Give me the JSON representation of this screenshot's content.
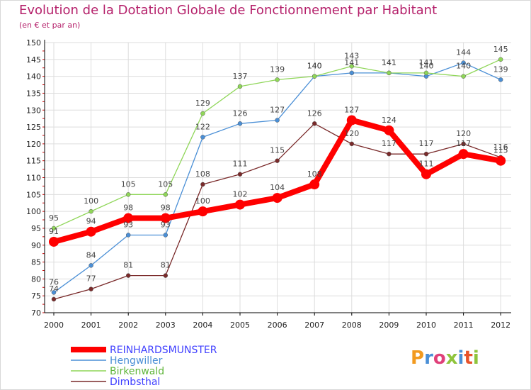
{
  "title": "Evolution de la Dotation Globale de Fonctionnement par Habitant",
  "subtitle": "(en € et par an)",
  "logo": "Proxiti",
  "chart_data": {
    "type": "line",
    "title": "Evolution de la Dotation Globale de Fonctionnement par Habitant",
    "subtitle": "(en € et par an)",
    "xlabel": "",
    "ylabel": "",
    "x": [
      "2000",
      "2001",
      "2002",
      "2003",
      "2004",
      "2005",
      "2006",
      "2007",
      "2008",
      "2009",
      "2010",
      "2011",
      "2012"
    ],
    "ylim": [
      70,
      150
    ],
    "yticks": [
      70,
      75,
      80,
      85,
      90,
      95,
      100,
      105,
      110,
      115,
      120,
      125,
      130,
      135,
      140,
      145,
      150
    ],
    "grid": true,
    "legend_position": "bottom-left",
    "series": [
      {
        "name": "REINHARDSMUNSTER",
        "color": "#ff0000",
        "legend_color": "#4040ff",
        "emphasis": true,
        "values": [
          91,
          94,
          98,
          98,
          100,
          102,
          104,
          108,
          127,
          124,
          111,
          117,
          115
        ]
      },
      {
        "name": "Hengwiller",
        "color": "#4a8fd6",
        "legend_color": "#4a8fd6",
        "emphasis": false,
        "values": [
          76,
          84,
          93,
          93,
          122,
          126,
          127,
          140,
          141,
          141,
          140,
          144,
          139
        ]
      },
      {
        "name": "Birkenwald",
        "color": "#8fd658",
        "legend_color": "#5fb53a",
        "emphasis": false,
        "values": [
          95,
          100,
          105,
          105,
          129,
          137,
          139,
          140,
          143,
          141,
          141,
          140,
          145
        ]
      },
      {
        "name": "Dimbsthal",
        "color": "#7a2a2a",
        "legend_color": "#4040ff",
        "emphasis": false,
        "values": [
          74,
          77,
          81,
          81,
          108,
          111,
          115,
          126,
          120,
          117,
          117,
          120,
          116
        ]
      }
    ]
  },
  "colors": {
    "title": "#b5216b",
    "axis": "#000000",
    "grid": "#dddddd",
    "tick_red": "#cc0000"
  }
}
